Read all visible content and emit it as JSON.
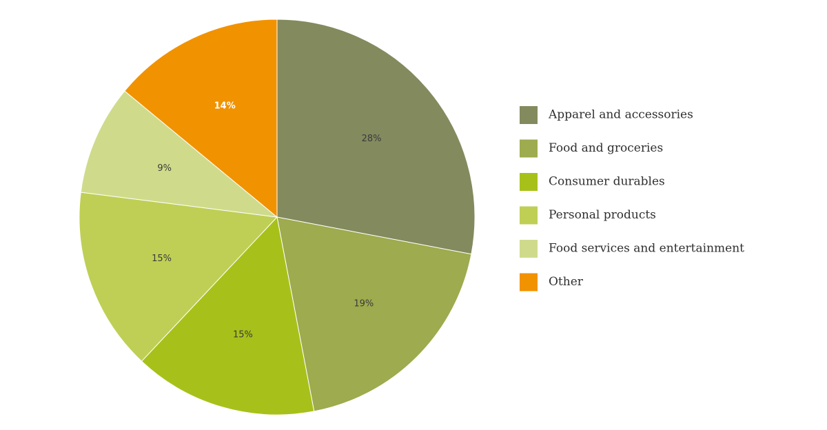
{
  "chart_data": {
    "type": "pie",
    "title": "",
    "categories": [
      "Apparel and accessories",
      "Food and groceries",
      "Consumer durables",
      "Personal products",
      "Food services and entertainment",
      "Other"
    ],
    "values": [
      28,
      19,
      15,
      15,
      9,
      14
    ],
    "labels": [
      "28%",
      "19%",
      "15%",
      "15%",
      "9%",
      "14%"
    ],
    "colors": [
      "#838a5e",
      "#9eab4e",
      "#a8c11a",
      "#bfcf55",
      "#cfdb8b",
      "#f19200"
    ],
    "label_colors": [
      "#3b3b3b",
      "#3b3b3b",
      "#3b3b3b",
      "#3b3b3b",
      "#3b3b3b",
      "#ffffff"
    ],
    "start_angle_deg": 0,
    "direction": "clockwise",
    "legend": {
      "placement": "right",
      "entries": [
        "Apparel and accessories",
        "Food and groceries",
        "Consumer durables",
        "Personal products",
        "Food services and entertainment",
        "Other"
      ]
    }
  }
}
